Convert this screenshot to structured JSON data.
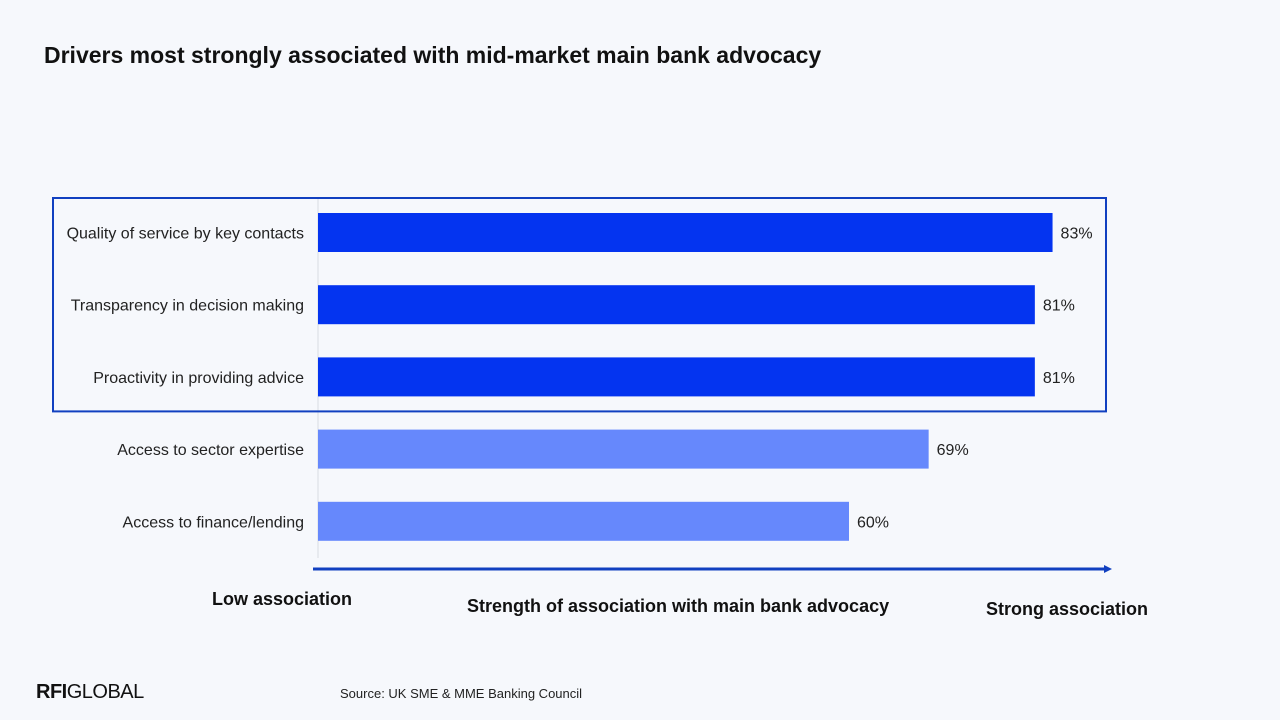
{
  "title": "Drivers most strongly associated with mid-market main bank advocacy",
  "chart_data": {
    "type": "bar",
    "orientation": "horizontal",
    "categories": [
      "Quality of service by key contacts",
      "Transparency in decision making",
      "Proactivity in providing advice",
      "Access to sector expertise",
      "Access to finance/lending"
    ],
    "values": [
      83,
      81,
      81,
      69,
      60
    ],
    "value_labels": [
      "83%",
      "81%",
      "81%",
      "69%",
      "60%"
    ],
    "unit": "%",
    "highlighted": [
      true,
      true,
      true,
      false,
      false
    ],
    "xlim": [
      0,
      100
    ],
    "grid": false,
    "colors": {
      "highlight": "#0434f0",
      "normal": "#6688fc",
      "frame": "#1140c0",
      "axis": "#1140c0"
    }
  },
  "axis": {
    "low_label": "Low association",
    "title": "Strength of association with main bank advocacy",
    "high_label": "Strong association"
  },
  "logo": {
    "strong": "RFI",
    "rest": "GLOBAL"
  },
  "source": "Source: UK SME & MME Banking Council"
}
